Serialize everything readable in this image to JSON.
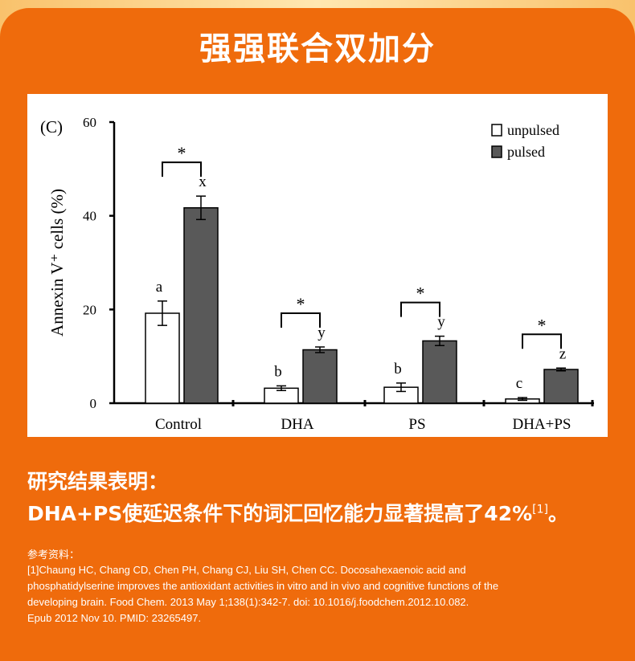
{
  "headline": "强强联合双加分",
  "chart_data": {
    "type": "bar",
    "panel_label": "(C)",
    "ylabel": "Annexin V⁺ cells (%)",
    "ylim": [
      0,
      60
    ],
    "yticks": [
      0,
      20,
      40,
      60
    ],
    "categories": [
      "Control",
      "DHA",
      "PS",
      "DHA+PS"
    ],
    "series": [
      {
        "name": "unpulsed",
        "color": "#ffffff",
        "values": [
          19.2,
          3.2,
          3.4,
          0.9
        ],
        "errors": [
          2.6,
          0.5,
          0.9,
          0.3
        ],
        "letters": [
          "a",
          "b",
          "b",
          "c"
        ]
      },
      {
        "name": "pulsed",
        "color": "#595959",
        "values": [
          41.7,
          11.4,
          13.3,
          7.2
        ],
        "errors": [
          2.5,
          0.6,
          1.0,
          0.3
        ],
        "letters": [
          "x",
          "y",
          "y",
          "z"
        ]
      }
    ],
    "significance": [
      "*",
      "*",
      "*",
      "*"
    ],
    "legend_position": "top-right",
    "grid": false
  },
  "findings": {
    "title": "研究结果表明：",
    "text": "DHA+PS使延迟条件下的词汇回忆能力显著提高了42%",
    "citation": "[1]",
    "end": "。"
  },
  "references": {
    "title": "参考资料：",
    "lines": [
      "[1]Chaung HC, Chang CD, Chen PH, Chang CJ, Liu SH, Chen CC. Docosahexaenoic acid and",
      " phosphatidylserine improves the antioxidant activities in vitro and in vivo and cognitive functions of the",
      "developing brain. Food Chem. 2013 May 1;138(1):342-7. doi: 10.1016/j.foodchem.2012.10.082.",
      " Epub 2012 Nov 10. PMID: 23265497."
    ]
  }
}
